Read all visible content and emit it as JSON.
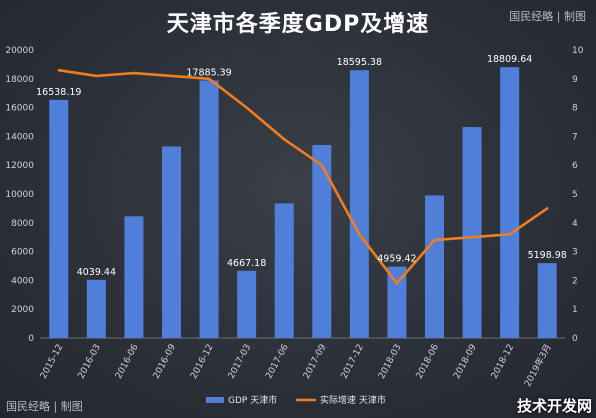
{
  "title": "天津市各季度GDP及增速",
  "brand": "国民经略 | 制图",
  "corner_mark": "技术开发网",
  "chart_data": {
    "type": "bar",
    "title": "天津市各季度GDP及增速",
    "categories": [
      "2015-12",
      "2016-03",
      "2016-06",
      "2016-09",
      "2016-12",
      "2017-03",
      "2017-06",
      "2017-09",
      "2017-12",
      "2018-03",
      "2018-06",
      "2018-09",
      "2018-12",
      "2019年3月"
    ],
    "series": [
      {
        "name": "GDP 天津市",
        "type": "bar",
        "axis": "left",
        "values": [
          16538.19,
          4039.44,
          8450,
          13300,
          17885.39,
          4667.18,
          9350,
          13400,
          18595.38,
          4959.42,
          9900,
          14650,
          18809.64,
          5198.98
        ],
        "labels": [
          "16538.19",
          "4039.44",
          "",
          "",
          "17885.39",
          "4667.18",
          "",
          "",
          "18595.38",
          "4959.42",
          "",
          "",
          "18809.64",
          "5198.98"
        ]
      },
      {
        "name": "实际增速 天津市",
        "type": "line",
        "axis": "right",
        "values": [
          9.3,
          9.1,
          9.2,
          9.1,
          9.0,
          8.0,
          6.9,
          6.0,
          3.6,
          1.9,
          3.4,
          3.5,
          3.6,
          4.5
        ]
      }
    ],
    "ylim_left": [
      0,
      20000
    ],
    "yticks_left": [
      "0",
      "2000",
      "4000",
      "6000",
      "8000",
      "10000",
      "12000",
      "14000",
      "16000",
      "18000",
      "20000"
    ],
    "ylim_right": [
      0,
      10
    ],
    "yticks_right": [
      "0",
      "1",
      "2",
      "3",
      "4",
      "5",
      "6",
      "7",
      "8",
      "9",
      "10"
    ],
    "grid": false,
    "legend_position": "bottom",
    "colors": {
      "bar": "#4f7fd9",
      "line": "#f07d20"
    }
  }
}
